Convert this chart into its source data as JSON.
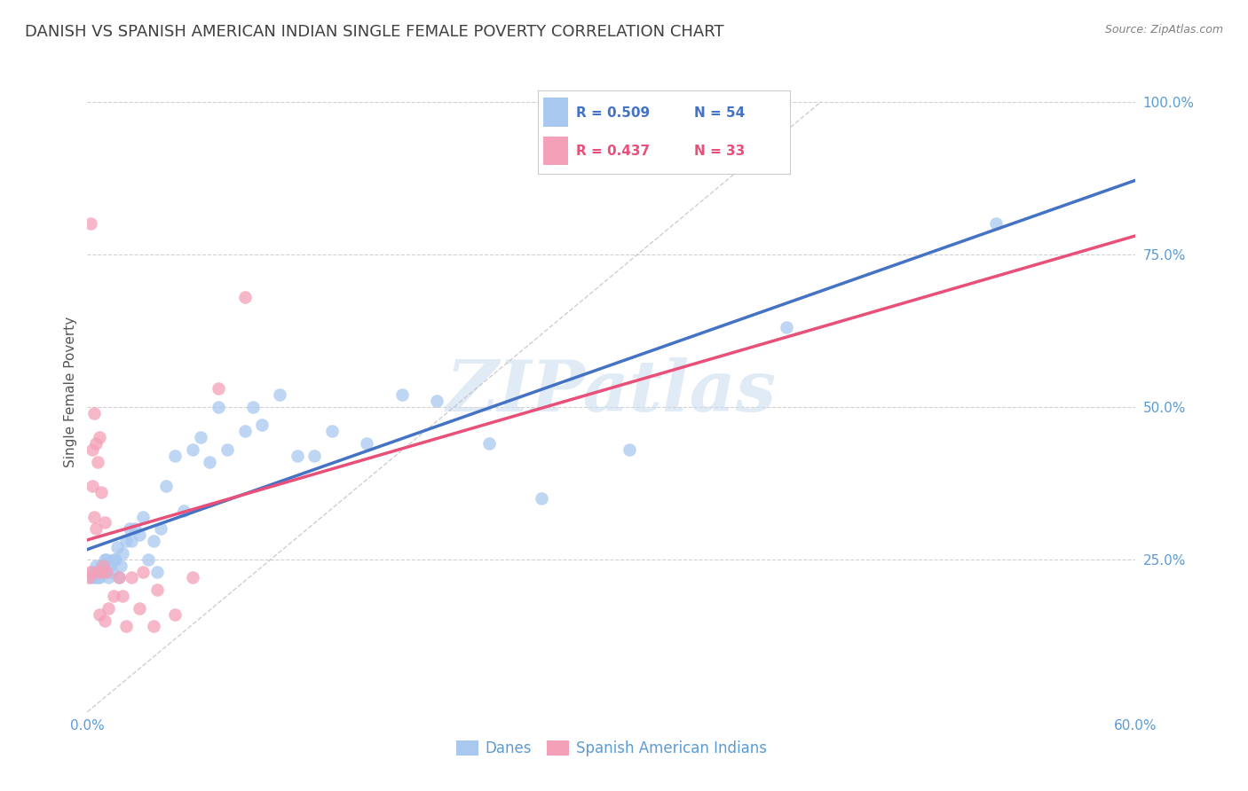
{
  "title": "DANISH VS SPANISH AMERICAN INDIAN SINGLE FEMALE POVERTY CORRELATION CHART",
  "source": "Source: ZipAtlas.com",
  "ylabel_label": "Single Female Poverty",
  "xlim": [
    0.0,
    0.6
  ],
  "ylim": [
    0.0,
    1.05
  ],
  "xticks": [
    0.0,
    0.1,
    0.2,
    0.3,
    0.4,
    0.5,
    0.6
  ],
  "xticklabels": [
    "0.0%",
    "",
    "",
    "",
    "",
    "",
    "60.0%"
  ],
  "yticks": [
    0.0,
    0.25,
    0.5,
    0.75,
    1.0
  ],
  "yticklabels": [
    "",
    "25.0%",
    "50.0%",
    "75.0%",
    "100.0%"
  ],
  "danes_R": 0.509,
  "danes_N": 54,
  "spanish_R": 0.437,
  "spanish_N": 33,
  "danes_color": "#A8C8F0",
  "danes_line_color": "#4472C4",
  "spanish_color": "#F4A0B8",
  "spanish_line_color": "#E8507A",
  "danes_scatter_x": [
    0.002,
    0.003,
    0.004,
    0.005,
    0.005,
    0.006,
    0.007,
    0.008,
    0.009,
    0.01,
    0.01,
    0.011,
    0.012,
    0.013,
    0.014,
    0.015,
    0.016,
    0.017,
    0.018,
    0.019,
    0.02,
    0.022,
    0.024,
    0.025,
    0.027,
    0.03,
    0.032,
    0.035,
    0.038,
    0.04,
    0.042,
    0.045,
    0.05,
    0.055,
    0.06,
    0.065,
    0.07,
    0.075,
    0.08,
    0.09,
    0.095,
    0.1,
    0.11,
    0.12,
    0.13,
    0.14,
    0.16,
    0.18,
    0.2,
    0.23,
    0.26,
    0.31,
    0.4,
    0.52
  ],
  "danes_scatter_y": [
    0.22,
    0.23,
    0.22,
    0.24,
    0.23,
    0.22,
    0.22,
    0.24,
    0.23,
    0.23,
    0.25,
    0.25,
    0.22,
    0.24,
    0.23,
    0.25,
    0.25,
    0.27,
    0.22,
    0.24,
    0.26,
    0.28,
    0.3,
    0.28,
    0.3,
    0.29,
    0.32,
    0.25,
    0.28,
    0.23,
    0.3,
    0.37,
    0.42,
    0.33,
    0.43,
    0.45,
    0.41,
    0.5,
    0.43,
    0.46,
    0.5,
    0.47,
    0.52,
    0.42,
    0.42,
    0.46,
    0.44,
    0.52,
    0.51,
    0.44,
    0.35,
    0.43,
    0.63,
    0.8
  ],
  "spanish_scatter_x": [
    0.001,
    0.002,
    0.002,
    0.003,
    0.003,
    0.004,
    0.004,
    0.005,
    0.005,
    0.006,
    0.006,
    0.007,
    0.007,
    0.008,
    0.008,
    0.009,
    0.01,
    0.01,
    0.011,
    0.012,
    0.015,
    0.018,
    0.02,
    0.022,
    0.025,
    0.03,
    0.032,
    0.038,
    0.04,
    0.05,
    0.06,
    0.075,
    0.09
  ],
  "spanish_scatter_y": [
    0.22,
    0.8,
    0.23,
    0.43,
    0.37,
    0.32,
    0.49,
    0.3,
    0.44,
    0.23,
    0.41,
    0.16,
    0.45,
    0.23,
    0.36,
    0.24,
    0.15,
    0.31,
    0.23,
    0.17,
    0.19,
    0.22,
    0.19,
    0.14,
    0.22,
    0.17,
    0.23,
    0.14,
    0.2,
    0.16,
    0.22,
    0.53,
    0.68
  ],
  "watermark": "ZIPatlas",
  "background_color": "#FFFFFF",
  "grid_color": "#CCCCCC",
  "tick_color": "#5B9BD5",
  "title_color": "#404040",
  "title_fontsize": 13,
  "axis_label_fontsize": 11,
  "tick_fontsize": 11,
  "source_fontsize": 9
}
